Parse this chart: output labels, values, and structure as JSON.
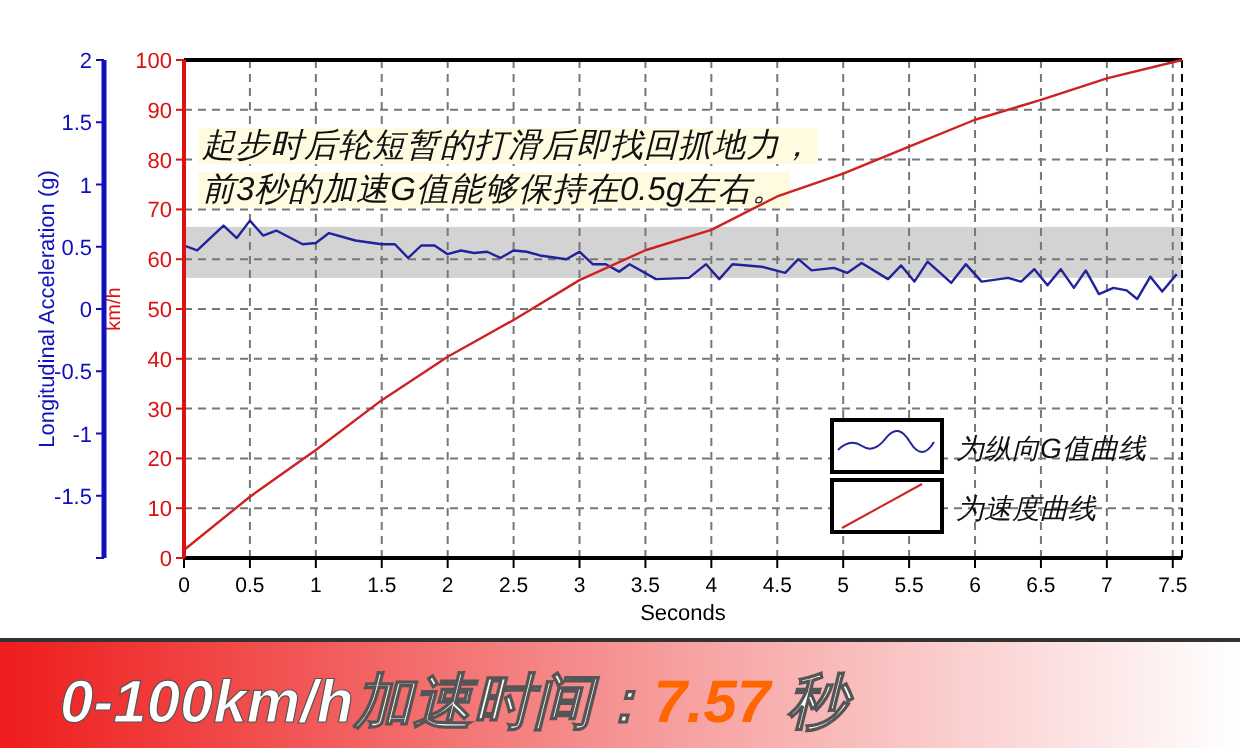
{
  "chart_data": {
    "type": "line",
    "title": "0-100km/h加速时间：7.57 秒",
    "xlabel": "Seconds",
    "ylabel": "km/h",
    "y2label": "Longitudinal Acceleration (g)",
    "annotations": [
      "起步时后轮短暂的打滑后即找回抓地力，",
      "前3秒的加速G值能够保持在0.5g左右。"
    ],
    "xlim": [
      0,
      7.57
    ],
    "xticks": [
      0,
      0.5,
      1,
      1.5,
      2,
      2.5,
      3,
      3.5,
      4,
      4.5,
      5,
      5.5,
      6,
      6.5,
      7,
      7.5
    ],
    "ylim": [
      0,
      100
    ],
    "yticks": [
      0,
      10,
      20,
      30,
      40,
      50,
      60,
      70,
      80,
      90,
      100
    ],
    "y2lim": [
      -2,
      2
    ],
    "y2ticks": [
      {
        "value": -2,
        "label": null
      },
      -1.5,
      -1,
      -0.5,
      0,
      0.5,
      1,
      1.5,
      2
    ],
    "grid": true,
    "legend": "bottom right",
    "line_style": "solid",
    "bands": [
      {
        "axis": "y2",
        "from": 0.25,
        "to": 0.66,
        "color": "#d3d3d3"
      }
    ],
    "series": [
      {
        "name": "为纵向G值曲线",
        "color": "#22229a",
        "axis": "y2",
        "x": [
          0,
          0.1,
          0.3,
          0.4,
          0.5,
          0.6,
          0.7,
          0.9,
          1.0,
          1.1,
          1.3,
          1.5,
          1.6,
          1.7,
          1.8,
          1.9,
          2.0,
          2.1,
          2.2,
          2.3,
          2.4,
          2.5,
          2.6,
          2.7,
          2.9,
          3.0,
          3.1,
          3.2,
          3.3,
          3.38,
          3.58,
          3.83,
          3.96,
          4.06,
          4.16,
          4.38,
          4.56,
          4.66,
          4.76,
          4.93,
          5.03,
          5.14,
          5.34,
          5.44,
          5.54,
          5.64,
          5.82,
          5.93,
          6.05,
          6.25,
          6.35,
          6.45,
          6.55,
          6.65,
          6.75,
          6.84,
          6.94,
          7.05,
          7.15,
          7.23,
          7.33,
          7.42,
          7.53
        ],
        "values": [
          0.51,
          0.47,
          0.67,
          0.57,
          0.71,
          0.59,
          0.63,
          0.52,
          0.53,
          0.61,
          0.55,
          0.52,
          0.52,
          0.41,
          0.51,
          0.51,
          0.44,
          0.47,
          0.45,
          0.46,
          0.41,
          0.47,
          0.46,
          0.43,
          0.4,
          0.46,
          0.36,
          0.36,
          0.3,
          0.36,
          0.24,
          0.25,
          0.36,
          0.24,
          0.36,
          0.34,
          0.29,
          0.4,
          0.31,
          0.33,
          0.29,
          0.37,
          0.24,
          0.35,
          0.22,
          0.38,
          0.21,
          0.36,
          0.22,
          0.25,
          0.22,
          0.32,
          0.19,
          0.32,
          0.17,
          0.31,
          0.12,
          0.17,
          0.15,
          0.08,
          0.26,
          0.14,
          0.28
        ]
      },
      {
        "name": "为速度曲线",
        "color": "#cc2222",
        "x": [
          0,
          0.5,
          1,
          1.5,
          2,
          2.5,
          3,
          3.5,
          4,
          4.5,
          5,
          5.5,
          6,
          6.5,
          7,
          7.57
        ],
        "values": [
          1.6,
          12.3,
          21.7,
          31.7,
          40.4,
          47.8,
          55.8,
          61.8,
          65.9,
          72.6,
          77.2,
          82.6,
          88,
          92,
          96.3,
          100
        ]
      }
    ]
  }
}
